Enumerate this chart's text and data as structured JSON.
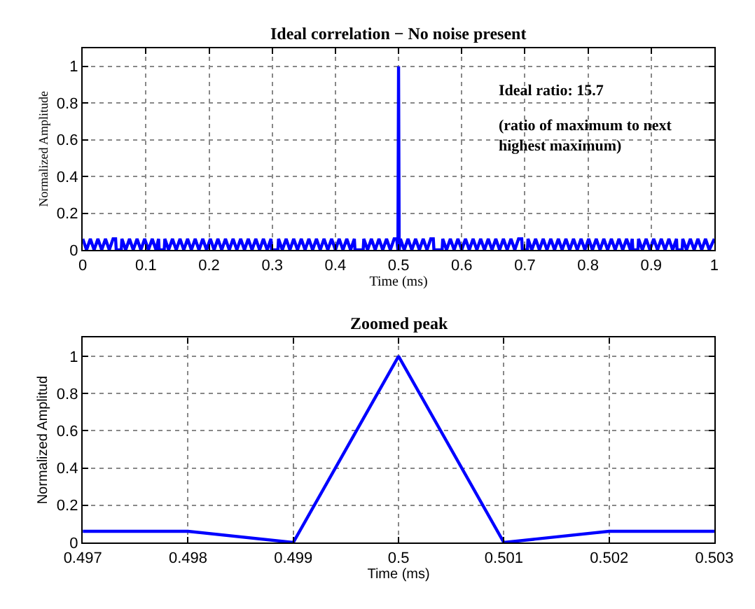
{
  "chart_data": [
    {
      "type": "line",
      "title": "Ideal correlation − No noise present",
      "xlabel": "Time (ms)",
      "ylabel": "Normalized Amplitude",
      "annotations": [
        "Ideal ratio: 15.7",
        "(ratio of maximum to next highest maximum)"
      ],
      "x": [
        0,
        0.006,
        0.012,
        0.018,
        0.024,
        0.03,
        0.036,
        0.042,
        0.048,
        0.052,
        0.053,
        0.061,
        0.062,
        0.068,
        0.074,
        0.08,
        0.086,
        0.092,
        0.098,
        0.104,
        0.11,
        0.116,
        0.12,
        0.121,
        0.129,
        0.13,
        0.136,
        0.142,
        0.148,
        0.154,
        0.16,
        0.166,
        0.172,
        0.178,
        0.184,
        0.19,
        0.196,
        0.202,
        0.208,
        0.214,
        0.22,
        0.226,
        0.232,
        0.238,
        0.244,
        0.25,
        0.256,
        0.262,
        0.268,
        0.274,
        0.28,
        0.286,
        0.292,
        0.298,
        0.299,
        0.309,
        0.31,
        0.316,
        0.322,
        0.328,
        0.334,
        0.34,
        0.346,
        0.352,
        0.358,
        0.364,
        0.37,
        0.376,
        0.382,
        0.388,
        0.394,
        0.4,
        0.406,
        0.412,
        0.418,
        0.424,
        0.43,
        0.431,
        0.444,
        0.445,
        0.451,
        0.457,
        0.463,
        0.469,
        0.475,
        0.481,
        0.487,
        0.493,
        0.497,
        0.499,
        0.5,
        0.501,
        0.503,
        0.509,
        0.515,
        0.521,
        0.527,
        0.533,
        0.539,
        0.545,
        0.551,
        0.555,
        0.556,
        0.569,
        0.57,
        0.576,
        0.582,
        0.588,
        0.594,
        0.6,
        0.606,
        0.612,
        0.618,
        0.624,
        0.63,
        0.636,
        0.642,
        0.648,
        0.654,
        0.66,
        0.666,
        0.672,
        0.678,
        0.684,
        0.69,
        0.695,
        0.696,
        0.704,
        0.705,
        0.711,
        0.717,
        0.723,
        0.729,
        0.735,
        0.741,
        0.747,
        0.753,
        0.759,
        0.765,
        0.771,
        0.777,
        0.783,
        0.789,
        0.795,
        0.801,
        0.807,
        0.813,
        0.819,
        0.825,
        0.831,
        0.837,
        0.843,
        0.849,
        0.855,
        0.861,
        0.867,
        0.87,
        0.871,
        0.879,
        0.88,
        0.886,
        0.892,
        0.898,
        0.904,
        0.91,
        0.916,
        0.922,
        0.928,
        0.934,
        0.94,
        0.941,
        0.949,
        0.95,
        0.956,
        0.962,
        0.968,
        0.974,
        0.98,
        0.986,
        0.992,
        1
      ],
      "series": [
        {
          "color": "#0000ff",
          "values": [
            0.06,
            0,
            0.06,
            0,
            0.06,
            0,
            0.06,
            0,
            0.06,
            0.06,
            0,
            0,
            0.06,
            0,
            0.06,
            0,
            0.06,
            0,
            0.06,
            0,
            0.06,
            0,
            0.06,
            0,
            0,
            0.06,
            0,
            0.06,
            0,
            0.06,
            0,
            0.06,
            0,
            0.06,
            0,
            0.06,
            0,
            0.06,
            0,
            0.06,
            0,
            0.06,
            0,
            0.06,
            0,
            0.06,
            0,
            0.06,
            0,
            0.06,
            0,
            0.06,
            0,
            0.06,
            0,
            0,
            0.06,
            0,
            0.06,
            0,
            0.06,
            0,
            0.06,
            0,
            0.06,
            0,
            0.06,
            0,
            0.06,
            0,
            0.06,
            0,
            0.06,
            0,
            0.06,
            0,
            0.06,
            0,
            0,
            0.06,
            0,
            0.06,
            0,
            0.06,
            0,
            0.06,
            0,
            0.06,
            0.06,
            0,
            1,
            0,
            0.06,
            0,
            0.06,
            0,
            0.06,
            0,
            0.06,
            0,
            0.06,
            0.06,
            0,
            0,
            0.06,
            0,
            0.06,
            0,
            0.06,
            0,
            0.06,
            0,
            0.06,
            0,
            0.06,
            0,
            0.06,
            0,
            0.06,
            0,
            0.06,
            0,
            0.06,
            0,
            0.06,
            0.06,
            0,
            0,
            0.06,
            0,
            0.06,
            0,
            0.06,
            0,
            0.06,
            0,
            0.06,
            0,
            0.06,
            0,
            0.06,
            0,
            0.06,
            0,
            0.06,
            0,
            0.06,
            0,
            0.06,
            0,
            0.06,
            0,
            0.06,
            0,
            0.06,
            0,
            0.06,
            0,
            0,
            0.06,
            0,
            0.06,
            0,
            0.06,
            0,
            0.06,
            0,
            0.06,
            0,
            0.06,
            0,
            0,
            0.06,
            0,
            0.06,
            0,
            0.06,
            0,
            0.06,
            0,
            0.06
          ]
        }
      ],
      "xlim": [
        0,
        1
      ],
      "xticks": [
        0,
        0.1,
        0.2,
        0.3,
        0.4,
        0.5,
        0.6,
        0.7,
        0.8,
        0.9,
        1
      ],
      "ylim": [
        0,
        1.1
      ],
      "yticks": [
        0,
        0.2,
        0.4,
        0.6,
        0.8,
        1
      ],
      "grid": true
    },
    {
      "type": "line",
      "title": "Zoomed peak",
      "xlabel": "Time (ms)",
      "ylabel": "Normalized Amplitud",
      "x": [
        0.497,
        0.498,
        0.499,
        0.5,
        0.501,
        0.502,
        0.503
      ],
      "series": [
        {
          "color": "#0000ff",
          "values": [
            0.06,
            0.06,
            0,
            1,
            0,
            0.06,
            0.06
          ]
        }
      ],
      "xlim": [
        0.497,
        0.503
      ],
      "xticks": [
        0.497,
        0.498,
        0.499,
        0.5,
        0.501,
        0.502,
        0.503
      ],
      "ylim": [
        0,
        1.1
      ],
      "yticks": [
        0,
        0.2,
        0.4,
        0.6,
        0.8,
        1
      ],
      "grid": true
    }
  ]
}
